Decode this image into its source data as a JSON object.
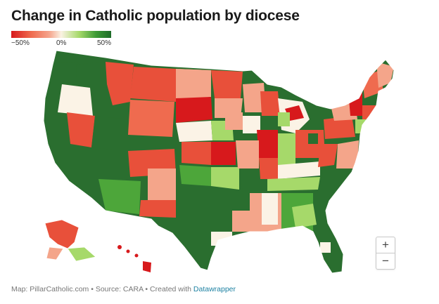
{
  "title": "Change in Catholic population by diocese",
  "legend": {
    "min_label": "−50%",
    "mid_label": "0%",
    "max_label": "50%"
  },
  "colors": {
    "strong_decline": "#d7191c",
    "decline": "#e8503a",
    "mild_decline": "#f4a58a",
    "neutral": "#fbf3e6",
    "mild_growth": "#a6d96a",
    "growth": "#4da63a",
    "strong_growth": "#2a6e2f"
  },
  "zoom": {
    "in_label": "+",
    "out_label": "−"
  },
  "footer": {
    "map_credit": "Map: PillarCatholic.com",
    "separator": " • ",
    "source": "Source: CARA",
    "created_with": "Created with ",
    "tool": "Datawrapper"
  }
}
